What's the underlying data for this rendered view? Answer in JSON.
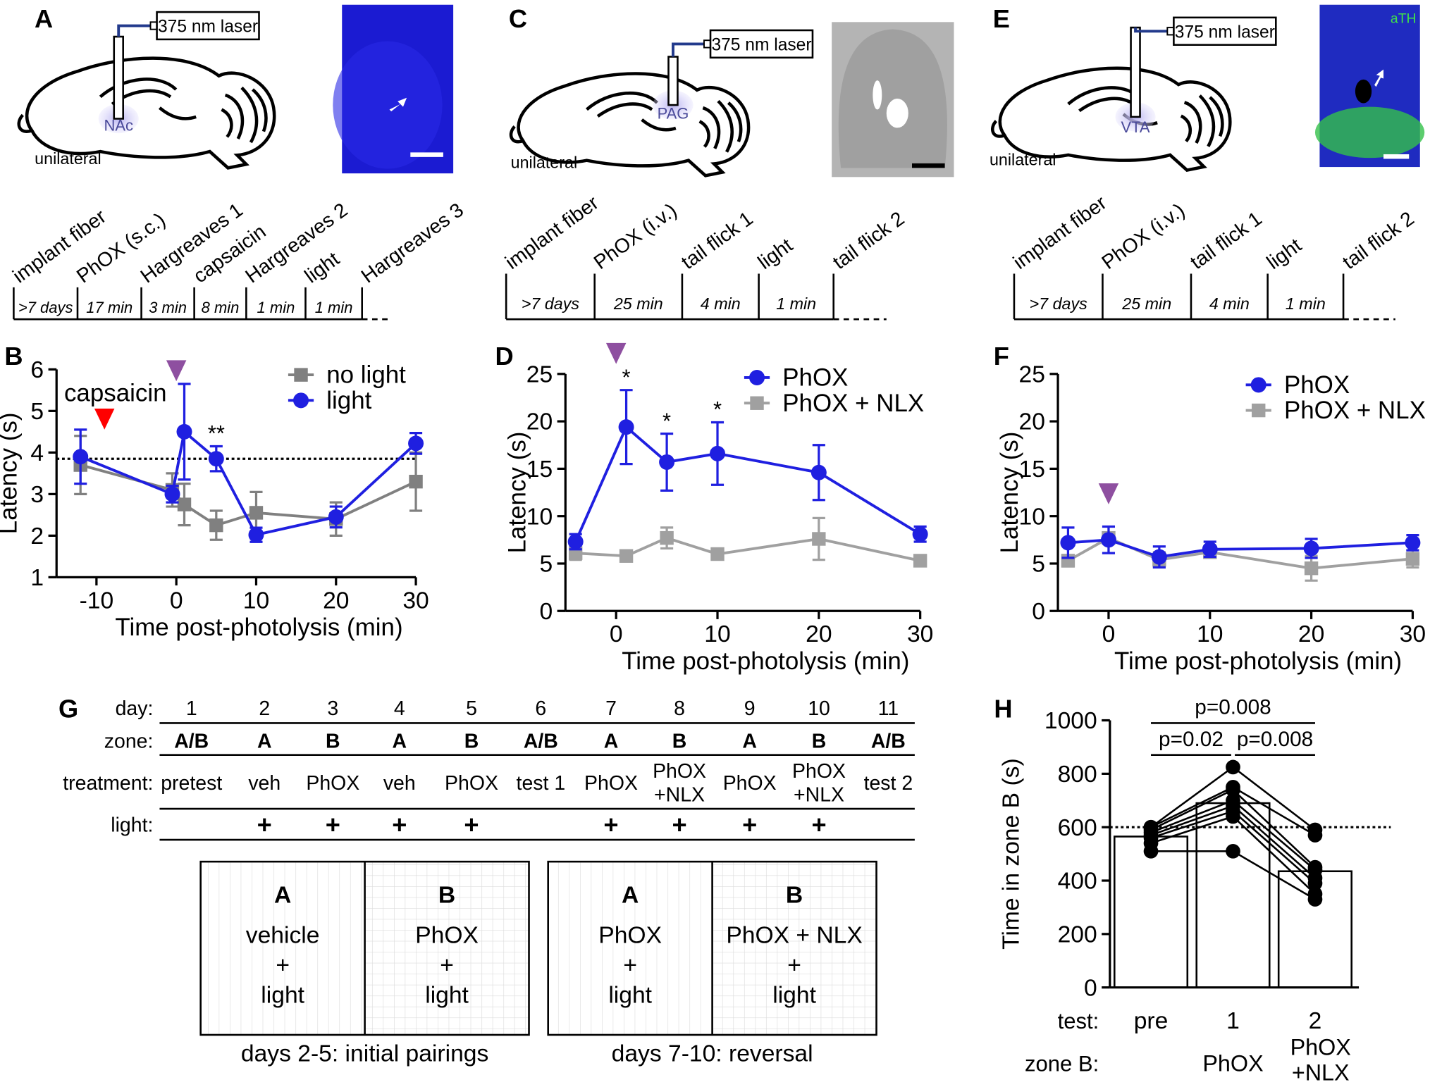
{
  "panel_labels": [
    "A",
    "B",
    "C",
    "D",
    "E",
    "F",
    "G",
    "H"
  ],
  "schematics": [
    {
      "laser": "375 nm laser",
      "region": "NAc",
      "note": "unilateral",
      "events": [
        "implant fiber",
        "PhOX (s.c.)",
        "Hargreaves 1",
        "capsaicin",
        "Hargreaves 2",
        "light",
        "Hargreaves 3"
      ],
      "durations": [
        ">7 days",
        "17 min",
        "3 min",
        "8 min",
        "1 min",
        "1 min"
      ]
    },
    {
      "laser": "375 nm laser",
      "region": "PAG",
      "note": "unilateral",
      "events": [
        "implant fiber",
        "PhOX (i.v.)",
        "tail flick 1",
        "light",
        "tail flick 2"
      ],
      "durations": [
        ">7 days",
        "25 min",
        "4 min",
        "1 min"
      ]
    },
    {
      "laser": "375 nm laser",
      "region": "VTA",
      "note": "unilateral",
      "image_label": "aTH",
      "events": [
        "implant fiber",
        "PhOX (i.v.)",
        "tail flick 1",
        "light",
        "tail flick 2"
      ],
      "durations": [
        ">7 days",
        "25 min",
        "4 min",
        "1 min"
      ]
    }
  ],
  "chart_data": [
    {
      "type": "line",
      "x": [
        -12,
        -0.5,
        1,
        5,
        10,
        20,
        30
      ],
      "xlim": [
        -15,
        30
      ],
      "xticks": [
        -10,
        0,
        10,
        20,
        30
      ],
      "ylim": [
        1,
        6
      ],
      "yticks": [
        1,
        2,
        3,
        4,
        5,
        6
      ],
      "xlabel": "Time post-photolysis (min)",
      "ylabel": "Latency (s)",
      "reference_line": 3.85,
      "legend": "upper right",
      "series": [
        {
          "name": "no light",
          "color": "#808080",
          "marker": "square",
          "values": [
            3.7,
            3.1,
            2.75,
            2.25,
            2.55,
            2.4,
            3.3
          ],
          "errors": [
            0.7,
            0.4,
            0.5,
            0.35,
            0.5,
            0.4,
            0.7
          ]
        },
        {
          "name": "light",
          "color": "#1f1fe0",
          "marker": "circle",
          "values": [
            3.9,
            3.0,
            4.5,
            3.85,
            2.02,
            2.45,
            4.22
          ],
          "errors": [
            0.65,
            0.2,
            1.15,
            0.3,
            0.17,
            0.25,
            0.25
          ]
        }
      ],
      "annotations": [
        {
          "text": "**",
          "x": 5
        }
      ],
      "arrows": [
        {
          "x": -9,
          "color": "#ff0000",
          "label": "capsaicin"
        },
        {
          "x": 0,
          "color": "#8e4fa0"
        }
      ]
    },
    {
      "type": "line",
      "x": [
        -4,
        1,
        5,
        10,
        20,
        30
      ],
      "xlim": [
        -5,
        30
      ],
      "xticks": [
        0,
        10,
        20,
        30
      ],
      "ylim": [
        0,
        25
      ],
      "yticks": [
        0,
        5,
        10,
        15,
        20,
        25
      ],
      "xlabel": "Time post-photolysis (min)",
      "ylabel": "Latency (s)",
      "legend": "upper right",
      "series": [
        {
          "name": "PhOX",
          "color": "#1f1fe0",
          "marker": "circle",
          "values": [
            7.3,
            19.4,
            15.7,
            16.6,
            14.6,
            8.1
          ],
          "errors": [
            0.8,
            3.9,
            3.0,
            3.3,
            2.9,
            0.8
          ]
        },
        {
          "name": "PhOX + NLX",
          "color": "#a0a0a0",
          "marker": "square",
          "values": [
            6.1,
            5.8,
            7.7,
            6.0,
            7.6,
            5.3
          ],
          "errors": [
            0.7,
            0.4,
            1.1,
            0.4,
            2.2,
            0.5
          ]
        }
      ],
      "annotations": [
        {
          "text": "*",
          "x": 1
        },
        {
          "text": "*",
          "x": 5
        },
        {
          "text": "*",
          "x": 10
        }
      ],
      "arrows": [
        {
          "x": 0,
          "color": "#8e4fa0"
        }
      ]
    },
    {
      "type": "line",
      "x": [
        -4,
        0,
        5,
        10,
        20,
        30
      ],
      "xlim": [
        -5,
        30
      ],
      "xticks": [
        0,
        10,
        20,
        30
      ],
      "ylim": [
        0,
        25
      ],
      "yticks": [
        0,
        5,
        10,
        15,
        20,
        25
      ],
      "xlabel": "Time post-photolysis (min)",
      "ylabel": "Latency (s)",
      "legend": "upper right",
      "series": [
        {
          "name": "PhOX",
          "color": "#1f1fe0",
          "marker": "circle",
          "values": [
            7.2,
            7.5,
            5.7,
            6.5,
            6.6,
            7.2
          ],
          "errors": [
            1.6,
            1.4,
            1.1,
            0.8,
            1.0,
            0.8
          ]
        },
        {
          "name": "PhOX + NLX",
          "color": "#a0a0a0",
          "marker": "square",
          "values": [
            5.3,
            7.7,
            5.4,
            6.2,
            4.5,
            5.5
          ],
          "errors": [
            0.6,
            0.6,
            0.8,
            0.6,
            1.3,
            0.9
          ]
        }
      ],
      "arrows": [
        {
          "x": 0,
          "color": "#8e4fa0"
        }
      ]
    },
    {
      "type": "bar",
      "categories": [
        "pre",
        "1",
        "2"
      ],
      "category_label": "test:",
      "zone_label": "zone B:",
      "zones": [
        null,
        [
          "PhOX"
        ],
        [
          "PhOX",
          "+NLX"
        ]
      ],
      "values": [
        565,
        690,
        435
      ],
      "color": "#ffffff",
      "points": [
        [
          510,
          540,
          560,
          570,
          580,
          590,
          600,
          600
        ],
        [
          510,
          640,
          660,
          680,
          700,
          740,
          750,
          825
        ],
        [
          330,
          350,
          390,
          410,
          440,
          450,
          570,
          590
        ]
      ],
      "ylim": [
        0,
        1000
      ],
      "yticks": [
        0,
        200,
        400,
        600,
        800,
        1000
      ],
      "ylabel": "Time in zone B (s)",
      "reference_line": 600,
      "comparisons": [
        {
          "from": 0,
          "to": 2,
          "label": "p=0.008"
        },
        {
          "from": 0,
          "to": 1,
          "label": "p=0.02"
        },
        {
          "from": 1,
          "to": 2,
          "label": "p=0.008"
        }
      ]
    }
  ],
  "table_g": {
    "row_labels": [
      "day:",
      "zone:",
      "treatment:",
      "light:"
    ],
    "days": [
      1,
      2,
      3,
      4,
      5,
      6,
      7,
      8,
      9,
      10,
      11
    ],
    "zones": [
      "A/B",
      "A",
      "B",
      "A",
      "B",
      "A/B",
      "A",
      "B",
      "A",
      "B",
      "A/B"
    ],
    "treatments": [
      [
        "pretest"
      ],
      [
        "veh"
      ],
      [
        "PhOX"
      ],
      [
        "veh"
      ],
      [
        "PhOX"
      ],
      [
        "test 1"
      ],
      [
        "PhOX"
      ],
      [
        "PhOX",
        "+NLX"
      ],
      [
        "PhOX"
      ],
      [
        "PhOX",
        "+NLX"
      ],
      [
        "test 2"
      ]
    ],
    "light": [
      null,
      "+",
      "+",
      "+",
      "+",
      null,
      "+",
      "+",
      "+",
      "+",
      null
    ]
  },
  "pairings": [
    {
      "caption": "days 2-5: initial pairings",
      "zones": [
        {
          "zone": "A",
          "lines": [
            "vehicle",
            "+",
            "light"
          ]
        },
        {
          "zone": "B",
          "lines": [
            "PhOX",
            "+",
            "light"
          ]
        }
      ]
    },
    {
      "caption": "days 7-10: reversal",
      "zones": [
        {
          "zone": "A",
          "lines": [
            "PhOX",
            "+",
            "light"
          ]
        },
        {
          "zone": "B",
          "lines": [
            "PhOX + NLX",
            "+",
            "light"
          ]
        }
      ]
    }
  ]
}
